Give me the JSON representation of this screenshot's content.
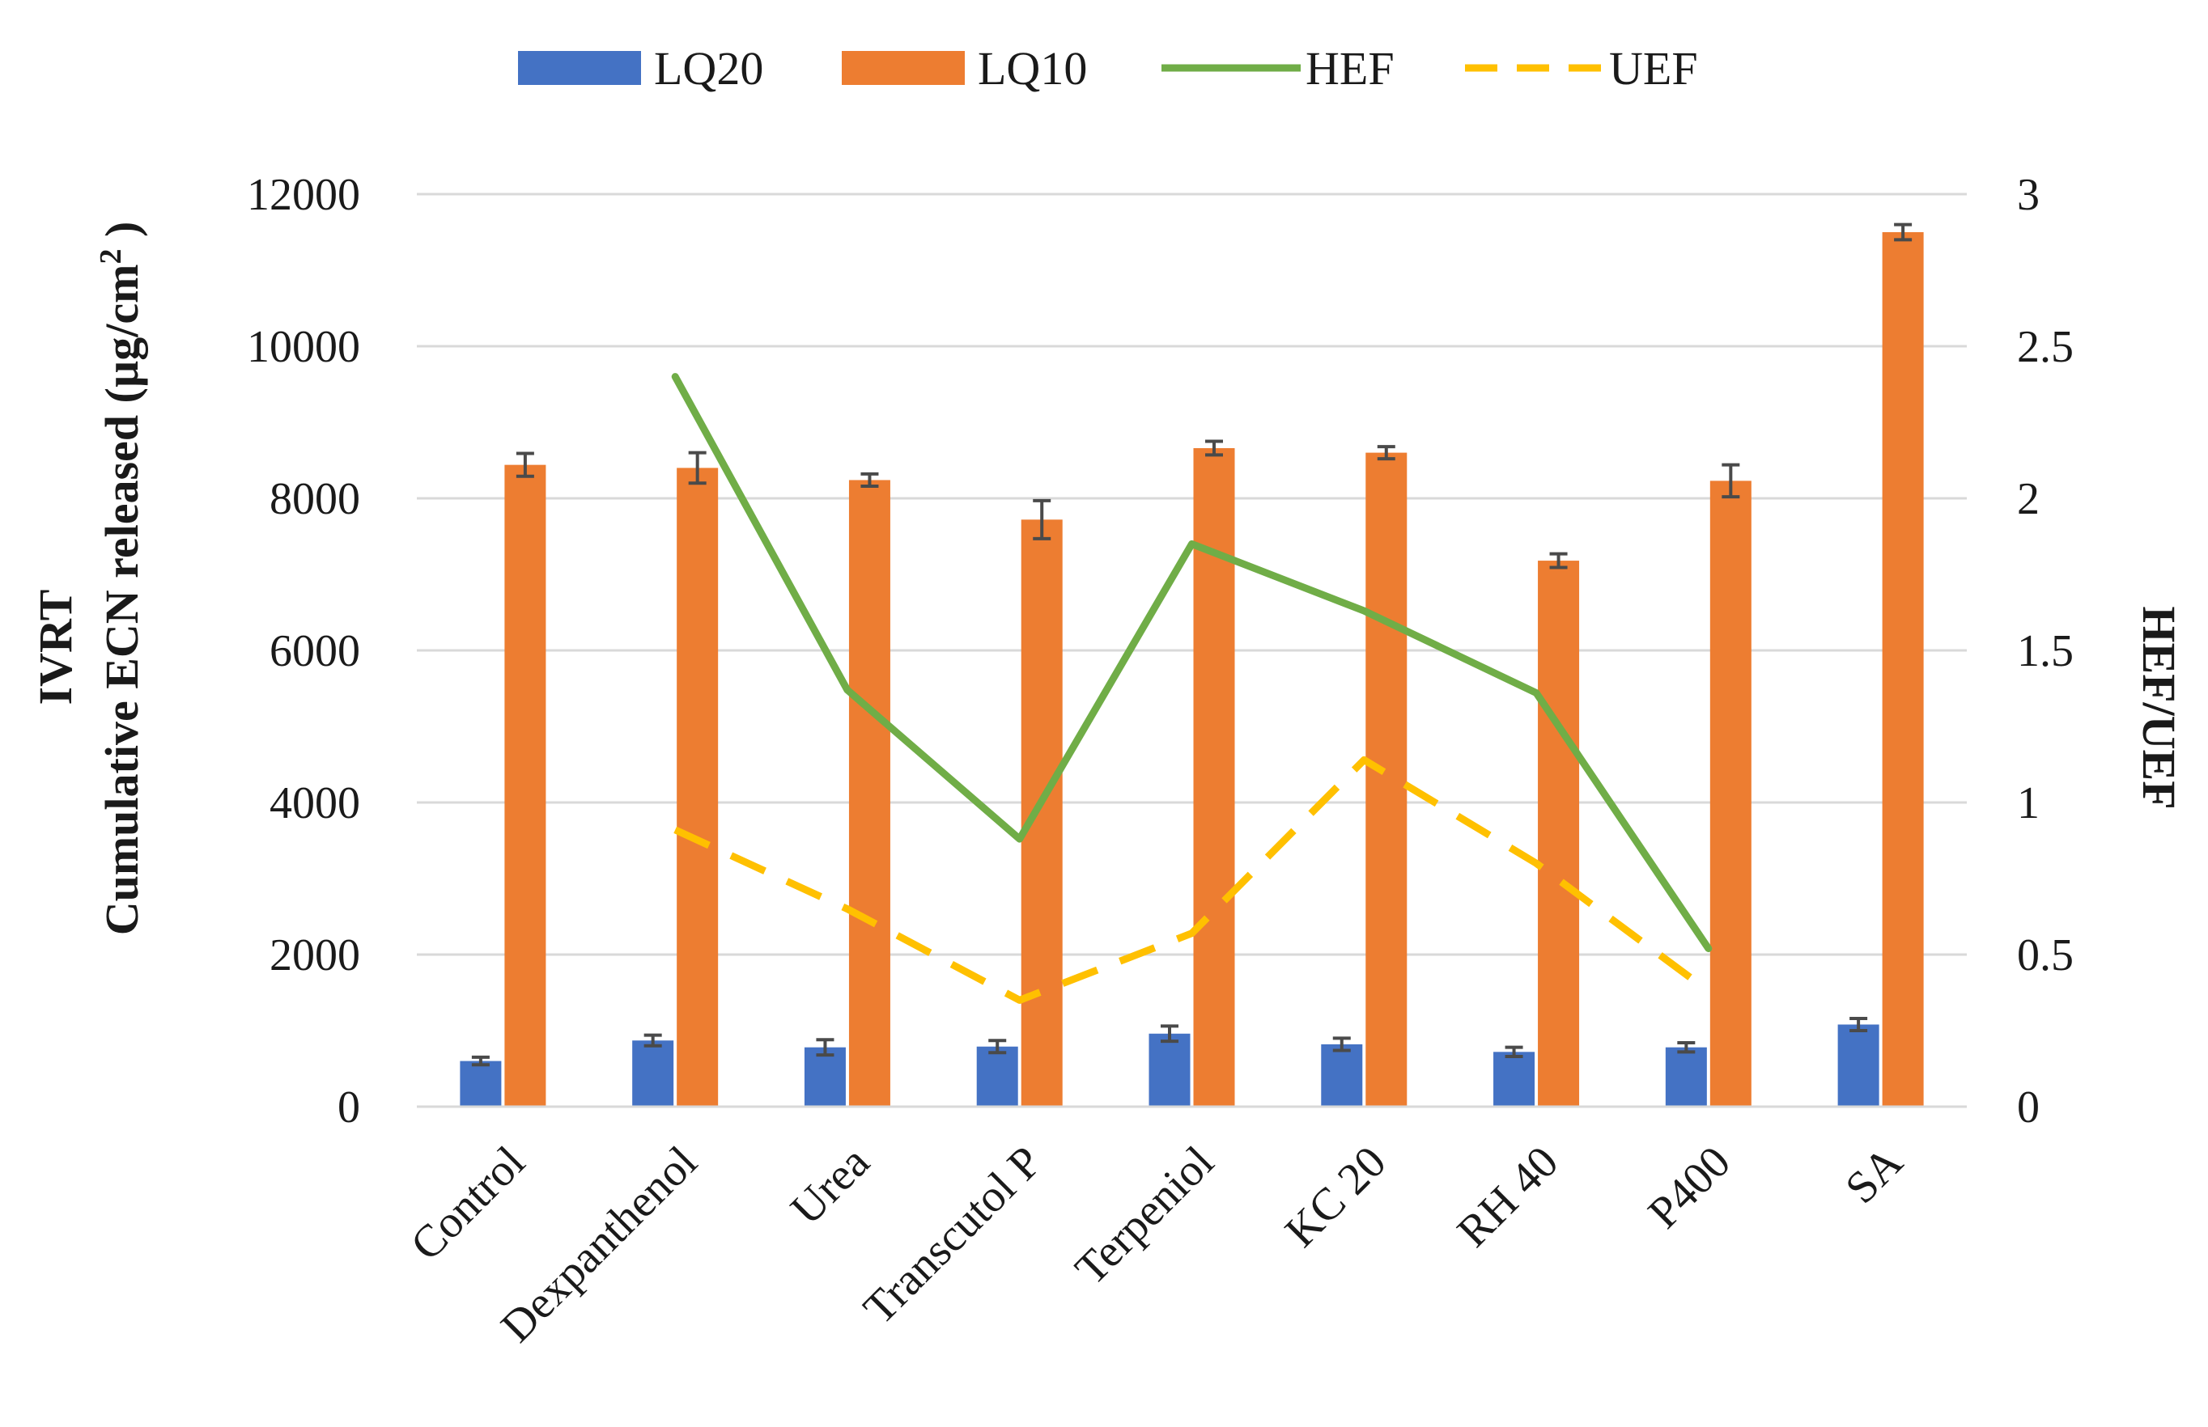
{
  "chart_data": {
    "type": "bar",
    "categories": [
      "Control",
      "Dexpanthenol",
      "Urea",
      "Transcutol P",
      "Terpeniol",
      "KC 20",
      "RH 40",
      "P400",
      "SA"
    ],
    "series": [
      {
        "name": "LQ20",
        "kind": "bar",
        "axis": "left",
        "color": "#4472C4",
        "values": [
          600,
          870,
          780,
          790,
          960,
          820,
          720,
          780,
          1080
        ],
        "errors": [
          50,
          70,
          100,
          80,
          100,
          80,
          60,
          60,
          80
        ]
      },
      {
        "name": "LQ10",
        "kind": "bar",
        "axis": "left",
        "color": "#ED7D31",
        "values": [
          8440,
          8400,
          8240,
          7720,
          8660,
          8600,
          7180,
          8230,
          11500
        ],
        "errors": [
          150,
          200,
          80,
          250,
          90,
          80,
          90,
          210,
          100
        ]
      },
      {
        "name": "HEF",
        "kind": "line",
        "axis": "right",
        "color": "#70AD47",
        "dashed": false,
        "values": [
          null,
          2.4,
          1.37,
          0.88,
          1.85,
          1.63,
          1.36,
          0.52,
          null
        ]
      },
      {
        "name": "UEF",
        "kind": "line",
        "axis": "right",
        "color": "#FFC000",
        "dashed": true,
        "values": [
          null,
          0.91,
          0.65,
          0.35,
          0.57,
          1.14,
          0.8,
          0.38,
          null
        ]
      }
    ],
    "y_left": {
      "label_line1": "IVRT",
      "label_line2": "Cumulative ECN released (µg/cm",
      "label_sup": "2",
      "label_end": " )",
      "min": 0,
      "max": 12000,
      "ticks": [
        "0",
        "2000",
        "4000",
        "6000",
        "8000",
        "10000",
        "12000"
      ]
    },
    "y_right": {
      "label": "HEF/UEF",
      "min": 0,
      "max": 3,
      "ticks": [
        "0",
        "0.5",
        "1",
        "1.5",
        "2",
        "2.5",
        "3"
      ]
    },
    "grid": true,
    "legend_position": "top-center"
  }
}
